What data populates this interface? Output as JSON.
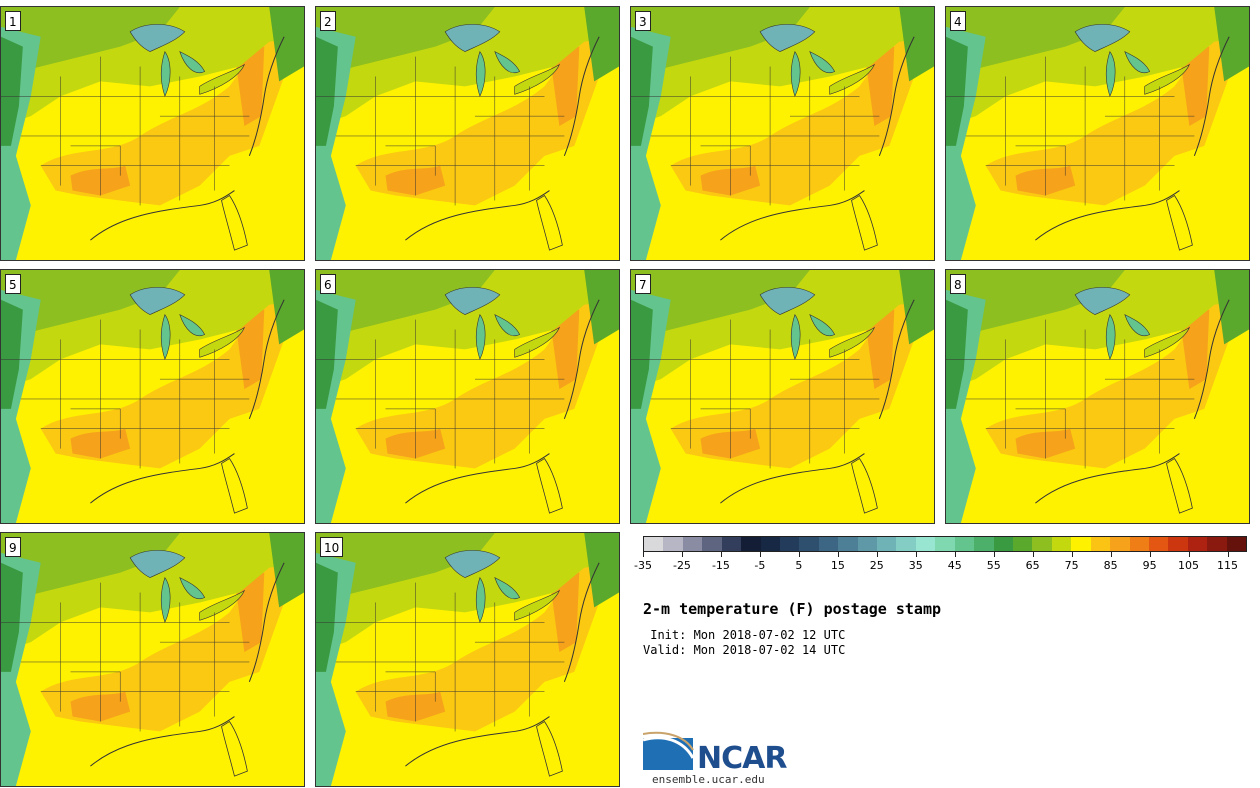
{
  "title": "2-m temperature (F) postage stamp",
  "init_label": " Init: Mon 2018-07-02 12 UTC",
  "valid_label": "Valid: Mon 2018-07-02 14 UTC",
  "logo": {
    "name": "NCAR",
    "url": "ensemble.ucar.edu"
  },
  "members": [
    "1",
    "2",
    "3",
    "4",
    "5",
    "6",
    "7",
    "8",
    "9",
    "10"
  ],
  "colorbar": {
    "colors": [
      "#d9d9dc",
      "#b6b6c4",
      "#8a8ca3",
      "#5d6580",
      "#333d5c",
      "#131d36",
      "#172845",
      "#243c5c",
      "#2f4f6e",
      "#3d6684",
      "#4d7f97",
      "#5f99a8",
      "#6fb3b7",
      "#83cdc4",
      "#98e5d2",
      "#7fd8b0",
      "#64c48e",
      "#4caf6a",
      "#3a9a42",
      "#5aa82c",
      "#8cbf1f",
      "#c4d80f",
      "#fff200",
      "#fbc314",
      "#f6a21a",
      "#ef7e17",
      "#e45713",
      "#cc3710",
      "#ad2210",
      "#8a1a10",
      "#66120c"
    ],
    "tick_labels": [
      "-35",
      "-25",
      "-15",
      "-5",
      "5",
      "15",
      "25",
      "35",
      "45",
      "55",
      "65",
      "75",
      "85",
      "95",
      "105",
      "115"
    ]
  }
}
